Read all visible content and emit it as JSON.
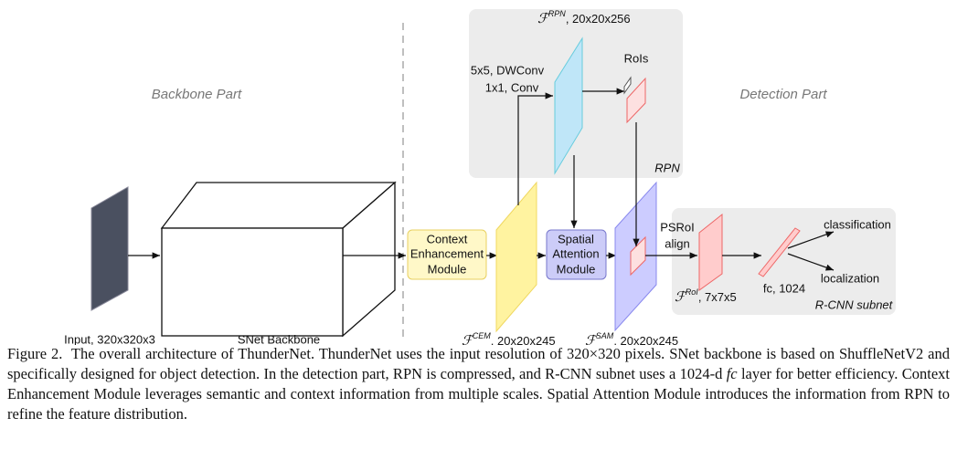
{
  "figure": {
    "backbone_part": "Backbone Part",
    "detection_part": "Detection Part",
    "input_label": "Input, 320x320x3",
    "snet_label": "SNet Backbone",
    "cem_box": [
      "Context",
      "Enhancement",
      "Module"
    ],
    "sam_box": [
      "Spatial",
      "Attention",
      "Module"
    ],
    "conv_labels": [
      "5x5, DWConv",
      "1x1, Conv"
    ],
    "f_rpn": {
      "symbol": "ℱ",
      "sup": "RPN",
      "text": ", 20x20x256"
    },
    "f_cem": {
      "symbol": "ℱ",
      "sup": "CEM",
      "text": ", 20x20x245"
    },
    "f_sam": {
      "symbol": "ℱ",
      "sup": "SAM",
      "text": ", 20x20x245"
    },
    "f_roi": {
      "symbol": "ℱ",
      "sup": "RoI",
      "text": ", 7x7x5"
    },
    "rois": "RoIs",
    "rpn": "RPN",
    "psroi": [
      "PSRoI",
      "align"
    ],
    "fc": "fc, 1024",
    "classification": "classification",
    "localization": "localization",
    "rcnn_subnet": "R-CNN subnet"
  },
  "caption": {
    "label": "Figure 2.",
    "text_before": "The overall architecture of ThunderNet. ThunderNet uses the input resolution of 320×320 pixels. SNet backbone is based on ShuffleNetV2 and specifically designed for object detection. In the detection part, RPN is compressed, and R-CNN subnet uses a 1024-d",
    "italic": "fc",
    "text_after": "layer for better efficiency. Context Enhancement Module leverages semantic and context information from multiple scales. Spatial Attention Module introduces the information from RPN to refine the feature distribution."
  }
}
